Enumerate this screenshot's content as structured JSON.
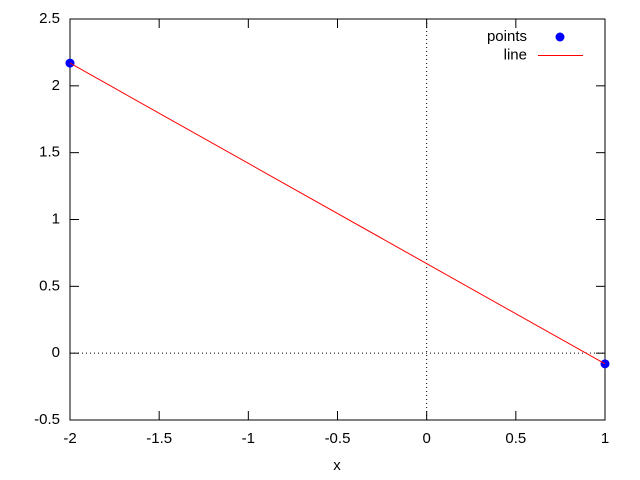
{
  "chart_data": {
    "type": "scatter",
    "xlabel": "x",
    "xlim": [
      -2,
      1
    ],
    "xticks": [
      -2,
      -1.5,
      -1,
      -0.5,
      0,
      0.5,
      1
    ],
    "ylim": [
      -0.5,
      2.5
    ],
    "yticks": [
      -0.5,
      0,
      0.5,
      1,
      1.5,
      2,
      2.5
    ],
    "zeroaxis": true,
    "legend": "top-right",
    "series": [
      {
        "name": "points",
        "mode": "points",
        "color": "#0000ff",
        "x": [
          -2,
          1
        ],
        "values": [
          2.17,
          -0.08
        ]
      },
      {
        "name": "line",
        "mode": "line",
        "color": "#ff0000",
        "x": [
          -2,
          1
        ],
        "values": [
          2.17,
          -0.08
        ]
      }
    ]
  }
}
